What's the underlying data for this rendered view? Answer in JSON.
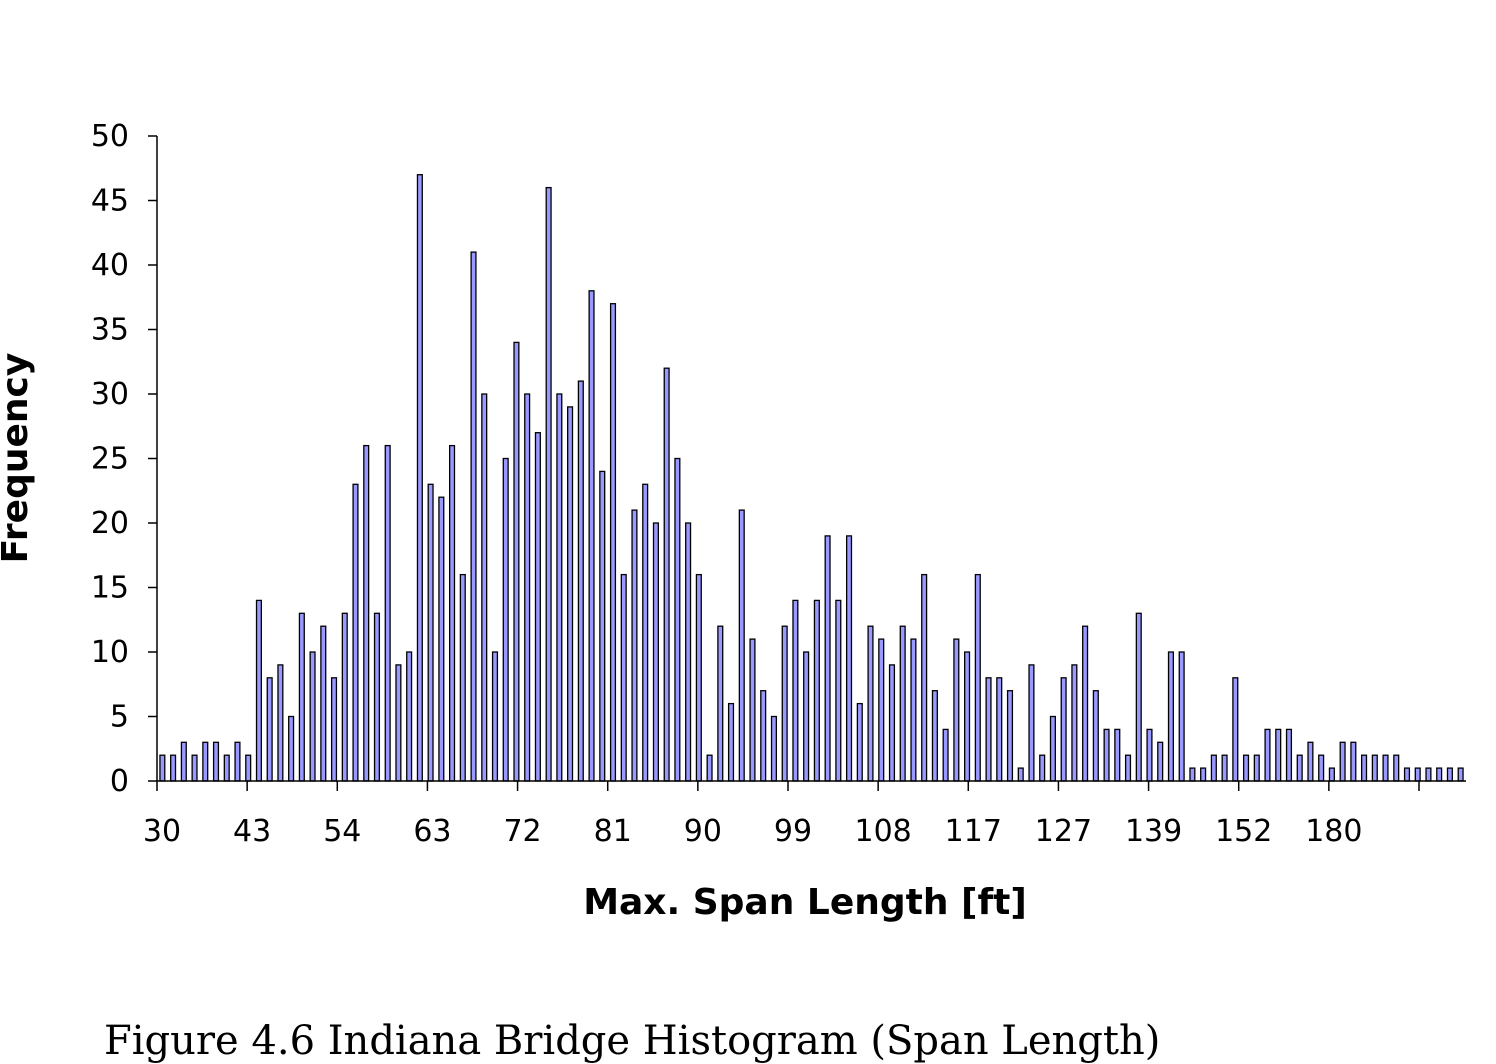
{
  "chart_data": {
    "type": "bar",
    "title": "",
    "xlabel": "Max. Span Length [ft]",
    "ylabel": "Frequency",
    "ylim": [
      0,
      50
    ],
    "yticks": [
      0,
      5,
      10,
      15,
      20,
      25,
      30,
      35,
      40,
      45,
      50
    ],
    "xtick_labels": [
      "30",
      "43",
      "54",
      "63",
      "72",
      "81",
      "90",
      "99",
      "108",
      "117",
      "127",
      "139",
      "152",
      "180"
    ],
    "grid": false,
    "legend": "none",
    "bar_fill": "#9999ff",
    "bar_stroke": "#000000",
    "values": [
      2,
      2,
      3,
      2,
      3,
      3,
      2,
      3,
      2,
      14,
      8,
      9,
      5,
      13,
      10,
      12,
      8,
      13,
      23,
      26,
      13,
      26,
      9,
      10,
      47,
      23,
      22,
      26,
      16,
      41,
      30,
      10,
      25,
      34,
      30,
      27,
      46,
      30,
      29,
      31,
      38,
      24,
      37,
      16,
      21,
      23,
      20,
      32,
      25,
      20,
      16,
      2,
      12,
      6,
      21,
      11,
      7,
      5,
      12,
      14,
      10,
      14,
      19,
      14,
      19,
      6,
      12,
      11,
      9,
      12,
      11,
      16,
      7,
      4,
      11,
      10,
      16,
      8,
      8,
      7,
      1,
      9,
      2,
      5,
      8,
      9,
      12,
      7,
      4,
      4,
      2,
      13,
      4,
      3,
      10,
      10,
      1,
      1,
      2,
      2,
      8,
      2,
      2,
      4,
      4,
      4,
      2,
      3,
      2,
      1,
      3,
      3,
      2,
      2,
      2,
      2,
      1,
      1,
      1,
      1,
      1,
      1
    ]
  },
  "caption": "Figure 4.6 Indiana Bridge Histogram (Span Length)"
}
